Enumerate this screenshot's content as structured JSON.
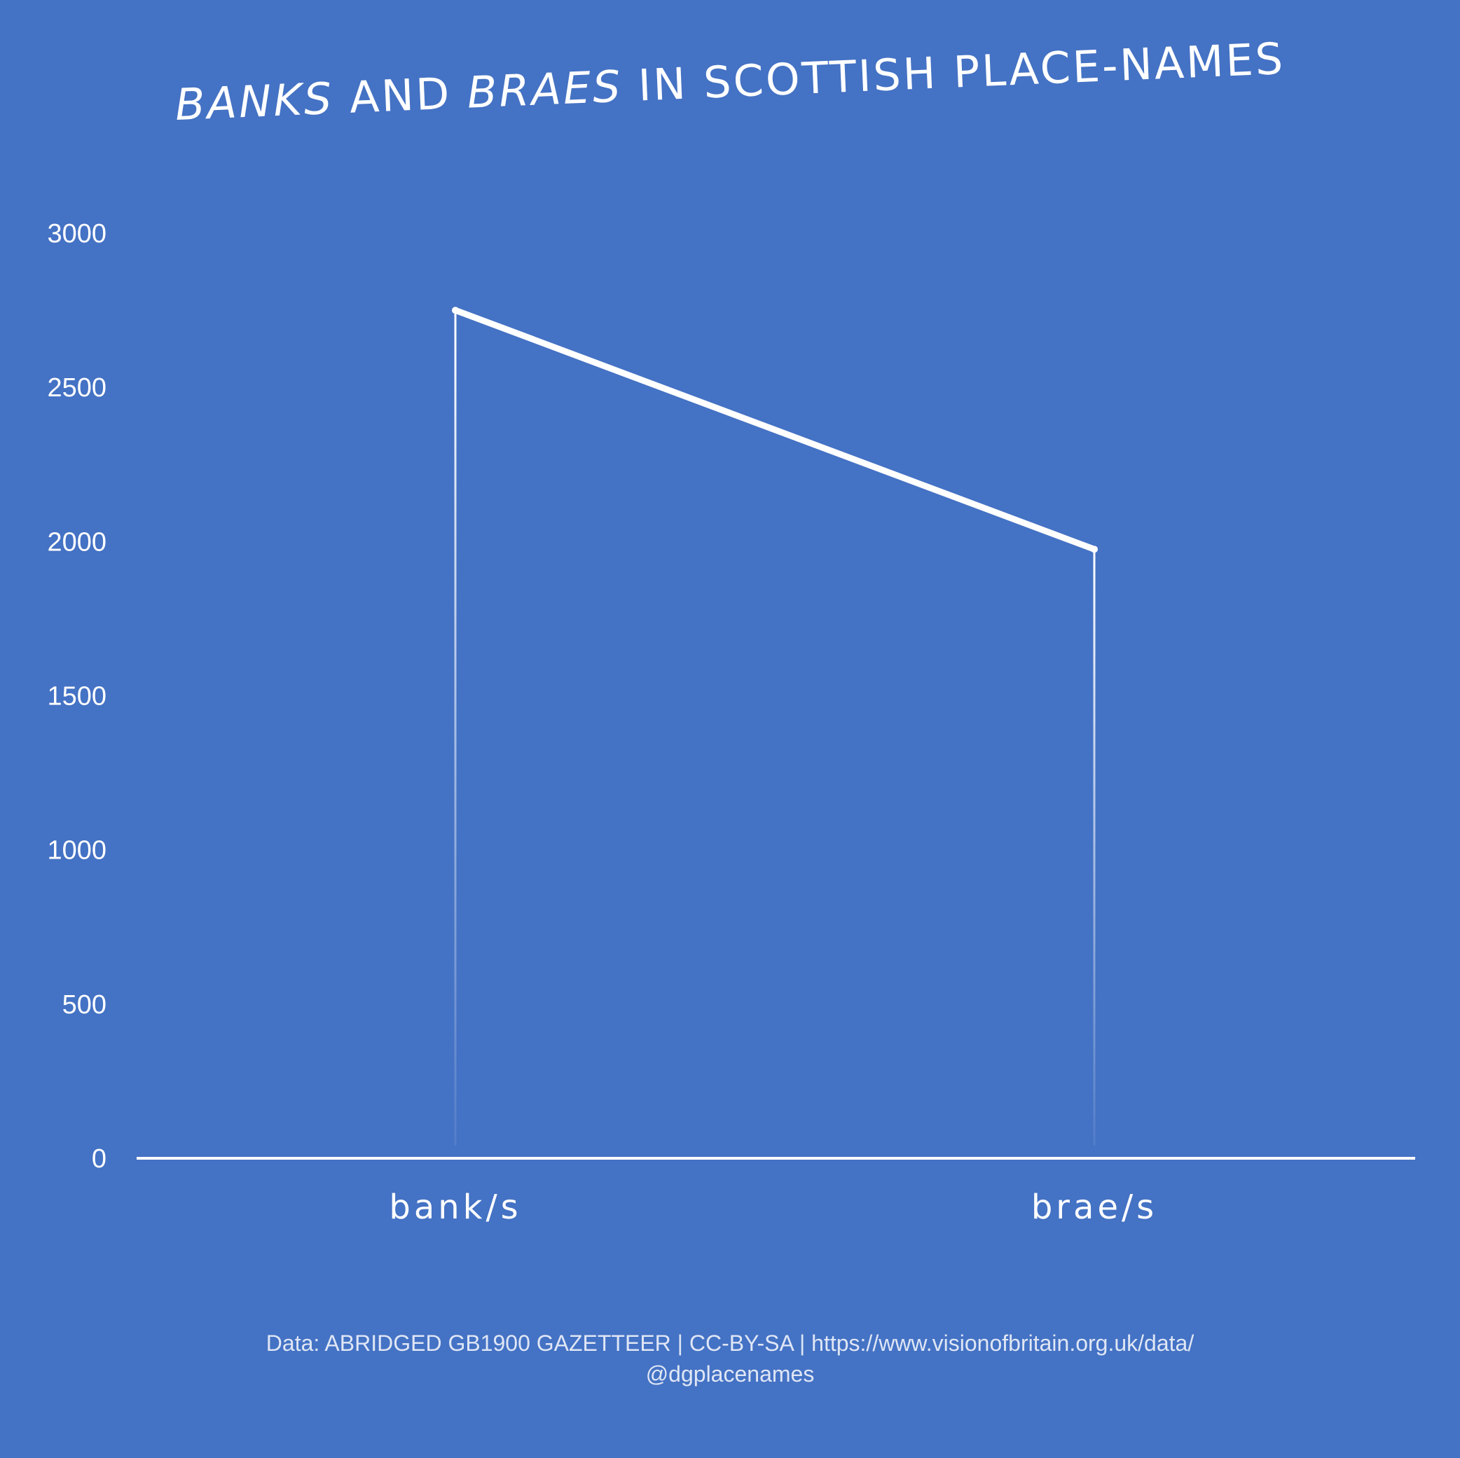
{
  "chart_data": {
    "type": "line",
    "title_parts": [
      {
        "text": "BANKS",
        "italic": true
      },
      {
        "text": " AND ",
        "italic": false
      },
      {
        "text": "BRAES",
        "italic": true
      },
      {
        "text": " IN SCOTTISH PLACE-NAMES",
        "italic": false
      }
    ],
    "categories": [
      "bank/s",
      "brae/s"
    ],
    "series": [
      {
        "values": [
          2750,
          1975
        ]
      }
    ],
    "y_ticks": [
      "0",
      "500",
      "1000",
      "1500",
      "2000",
      "2500",
      "3000"
    ],
    "ylim": [
      0,
      3000
    ],
    "drop_lines": true,
    "grid": false,
    "legend": "none"
  },
  "footer": {
    "source_line": "Data: ABRIDGED GB1900 GAZETTEER | CC-BY-SA | https://www.visionofbritain.org.uk/data/",
    "handle": "@dgplacenames"
  },
  "colors": {
    "background": "#4472c4",
    "line": "#ffffff",
    "text": "#ffffff"
  }
}
